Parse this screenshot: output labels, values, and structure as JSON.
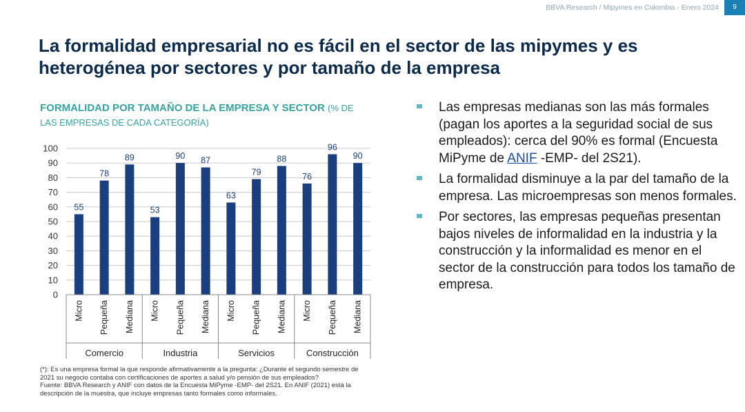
{
  "header": {
    "text": "BBVA Research / Mipymes en Colombia - Enero 2024",
    "page_number": "9"
  },
  "title": "La formalidad empresarial no es fácil en el sector de las mipymes y es heterogénea por sectores y por tamaño de la empresa",
  "chart_heading": {
    "title": "FORMALIDAD POR TAMAÑO DE LA EMPRESA Y SECTOR",
    "subtitle": "(% DE LAS EMPRESAS DE CADA CATEGORÍA)"
  },
  "chart_data": {
    "type": "bar",
    "title": "FORMALIDAD POR TAMAÑO DE LA EMPRESA Y SECTOR",
    "subtitle": "(% DE LAS EMPRESAS DE CADA CATEGORÍA)",
    "groups": [
      "Comercio",
      "Industria",
      "Servicios",
      "Construcción"
    ],
    "categories": [
      "Micro",
      "Pequeña",
      "Mediana",
      "Micro",
      "Pequeña",
      "Mediana",
      "Micro",
      "Pequeña",
      "Mediana",
      "Micro",
      "Pequeña",
      "Mediana"
    ],
    "values": [
      55,
      78,
      89,
      53,
      90,
      87,
      63,
      79,
      88,
      76,
      96,
      90
    ],
    "ylim": [
      0,
      100
    ],
    "yticks": [
      0,
      10,
      20,
      30,
      40,
      50,
      60,
      70,
      80,
      90,
      100
    ],
    "grid": true,
    "legend": "none",
    "bar_color": "#1a3e7e",
    "data_label_color": "#1a3e7e"
  },
  "bullets": [
    {
      "before": "Las empresas medianas son las más formales (pagan los aportes a la seguridad social de sus empleados): cerca del 90% es formal (Encuesta MiPyme de ",
      "link": "ANIF",
      "after": " -EMP- del 2S21)."
    },
    {
      "before": "La formalidad disminuye a la par del tamaño de la empresa. Las microempresas son menos formales.",
      "link": "",
      "after": ""
    },
    {
      "before": "Por sectores, las empresas pequeñas presentan bajos niveles de informalidad en la industria y la construcción y la informalidad es menor en el sector de la construcción para todos los tamaño de empresa.",
      "link": "",
      "after": ""
    }
  ],
  "footnote": {
    "note": "(*): Es una empresa formal la que responde afirmativamente a la pregunta: ¿Durante el segundo semestre de 2021 su negocio contaba con certificaciones de aportes a salud y/o pensión de sus empleados?",
    "source": "Fuente: BBVA Research y ANIF con datos de la Encuesta MiPyme -EMP- del 2S21. En ANIF (2021) está la descripción de la muestra, que incluye empresas tanto formales como informales."
  },
  "colors": {
    "title": "#0c2a4a",
    "accent": "#35a3a0",
    "bullet_marker": "#5fb8c9",
    "page_badge": "#1a80b6"
  }
}
